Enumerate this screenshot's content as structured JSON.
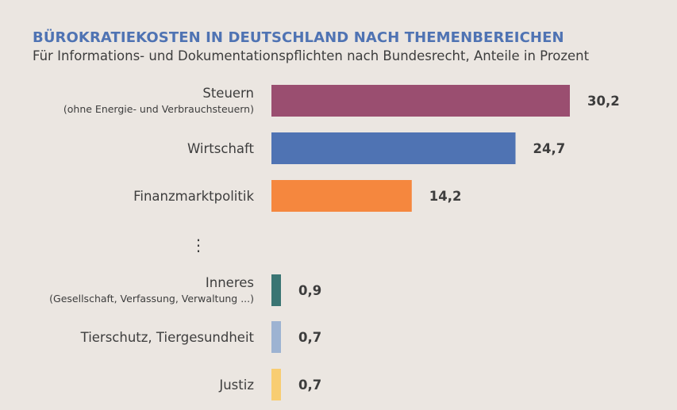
{
  "chart_data": {
    "type": "bar",
    "orientation": "horizontal",
    "title": "BÜROKRATIEKOSTEN IN DEUTSCHLAND NACH THEMENBEREICHEN",
    "subtitle": "Für Informations- und Dokumentationspflichten nach Bundesrecht, Anteile in Prozent",
    "categories": [
      {
        "label": "Steuern",
        "sublabel": "(ohne Energie- und Verbrauchsteuern)",
        "value": 30.2,
        "display": "30,2",
        "color": "#9a4e70"
      },
      {
        "label": "Wirtschaft",
        "sublabel": "",
        "value": 24.7,
        "display": "24,7",
        "color": "#4f73b3"
      },
      {
        "label": "Finanzmarktpolitik",
        "sublabel": "",
        "value": 14.2,
        "display": "14,2",
        "color": "#f5873e"
      },
      {
        "label": "Inneres",
        "sublabel": "(Gesellschaft, Verfassung, Verwaltung ...)",
        "value": 0.9,
        "display": "0,9",
        "color": "#3a7573"
      },
      {
        "label": "Tierschutz, Tiergesundheit",
        "sublabel": "",
        "value": 0.7,
        "display": "0,7",
        "color": "#9db3d2"
      },
      {
        "label": "Justiz",
        "sublabel": "",
        "value": 0.7,
        "display": "0,7",
        "color": "#f8cd72"
      }
    ],
    "gap_marker": "⋮",
    "xlabel": "",
    "ylabel": "",
    "grid": false,
    "legend": "none"
  }
}
